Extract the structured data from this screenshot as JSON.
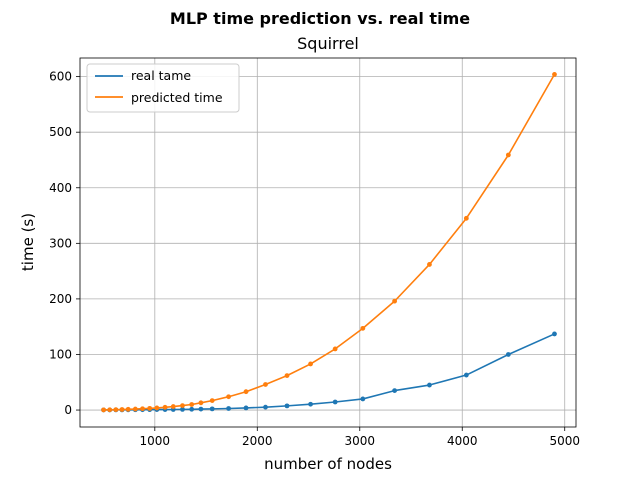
{
  "chart_data": {
    "type": "line",
    "title": "MLP time prediction vs. real time",
    "subtitle": "Squirrel",
    "xlabel": "number of nodes",
    "ylabel": "time (s)",
    "xlim": [
      270,
      5110
    ],
    "ylim": [
      -30.5,
      633.5
    ],
    "xticks": [
      1000,
      2000,
      3000,
      4000,
      5000
    ],
    "yticks": [
      0,
      100,
      200,
      300,
      400,
      500,
      600
    ],
    "grid": true,
    "legend_position": "top-left",
    "series": [
      {
        "name": "real tame",
        "color": "#1f77b4",
        "x": [
          500,
          560,
          620,
          680,
          740,
          810,
          880,
          950,
          1020,
          1100,
          1180,
          1270,
          1360,
          1450,
          1560,
          1720,
          1890,
          2080,
          2290,
          2520,
          2760,
          3030,
          3340,
          3680,
          4040,
          4450,
          4900
        ],
        "y": [
          0.2,
          0.2,
          0.3,
          0.3,
          0.4,
          0.5,
          0.6,
          0.7,
          0.8,
          0.9,
          1.0,
          1.2,
          1.4,
          1.7,
          2.1,
          2.8,
          3.8,
          5.2,
          7.5,
          10.5,
          14.5,
          20,
          35,
          45,
          63,
          100,
          137
        ]
      },
      {
        "name": "predicted time",
        "color": "#ff7f0e",
        "x": [
          500,
          560,
          620,
          680,
          740,
          810,
          880,
          950,
          1020,
          1100,
          1180,
          1270,
          1360,
          1450,
          1560,
          1720,
          1890,
          2080,
          2290,
          2520,
          2760,
          3030,
          3340,
          3680,
          4040,
          4450,
          4900
        ],
        "y": [
          0.3,
          0.5,
          0.7,
          1.0,
          1.3,
          1.8,
          2.4,
          3.0,
          3.8,
          5.0,
          6.3,
          8.0,
          10,
          13,
          17,
          24,
          33,
          46,
          62,
          83,
          110,
          147,
          196,
          262,
          345,
          459,
          604
        ]
      }
    ]
  }
}
